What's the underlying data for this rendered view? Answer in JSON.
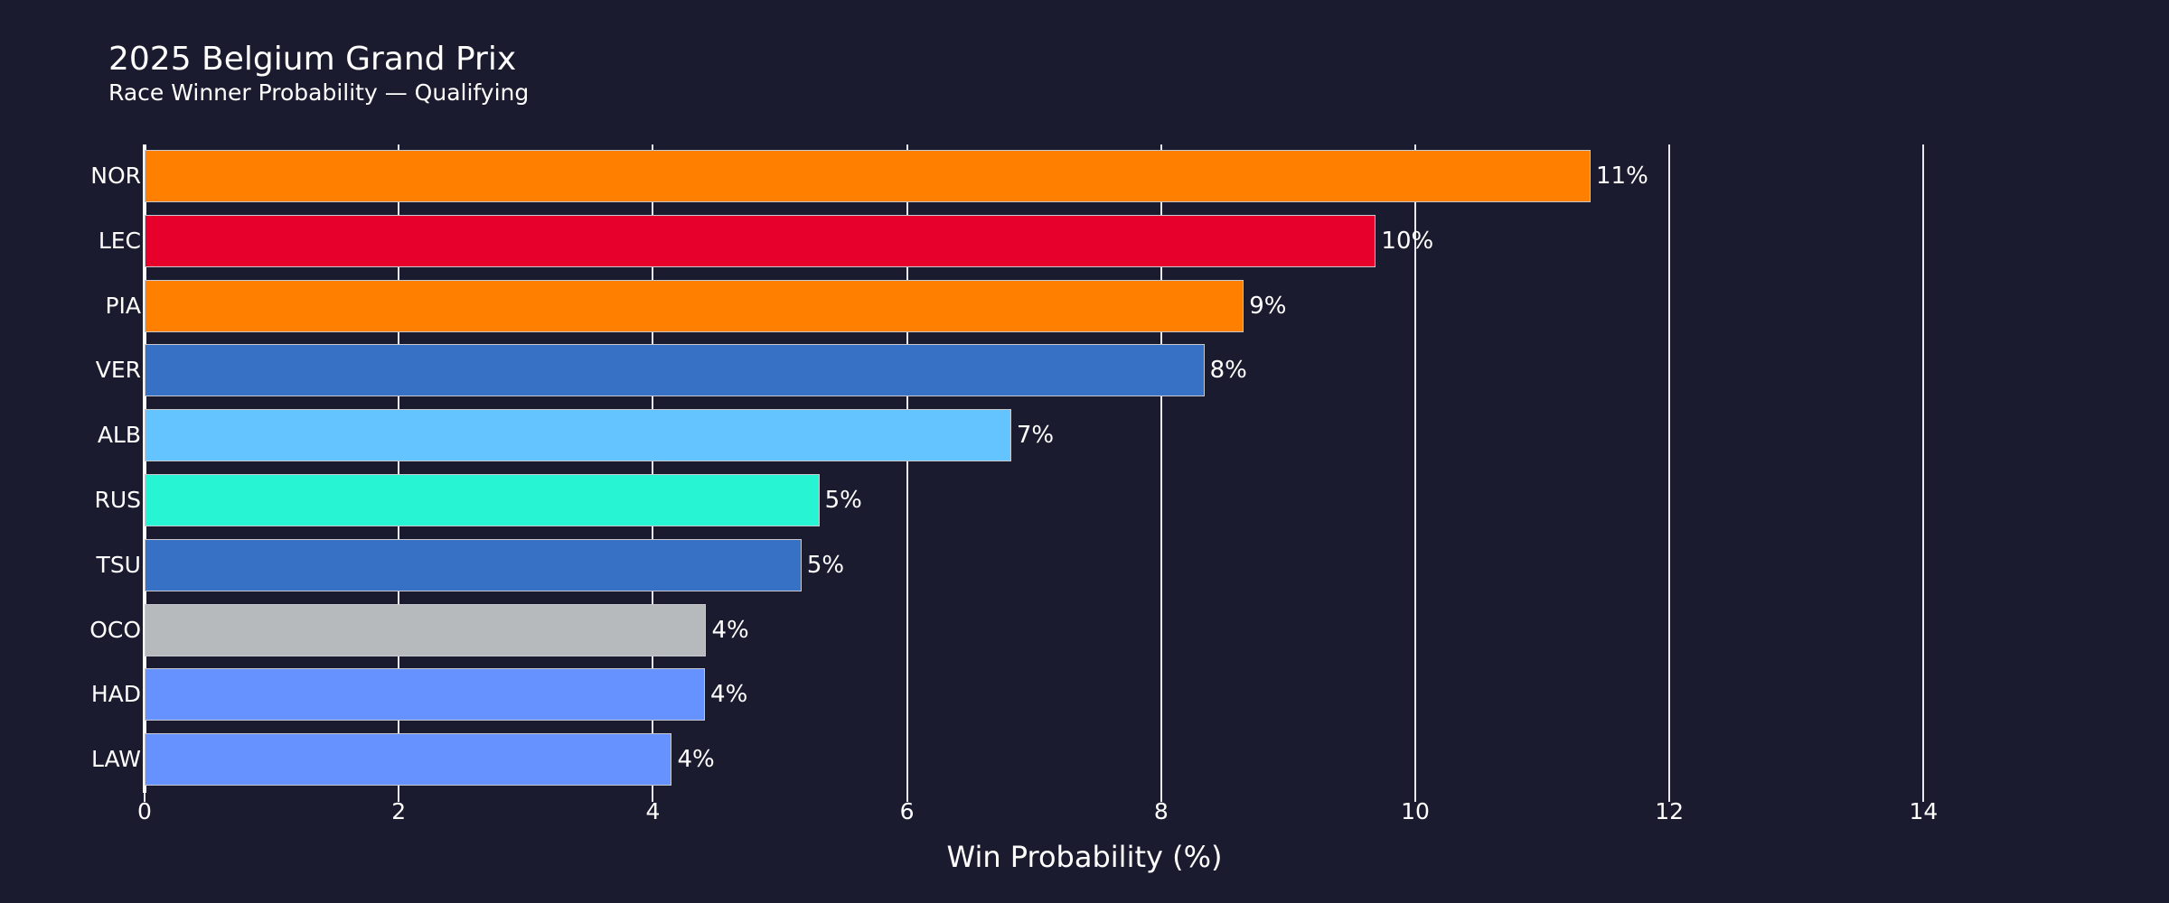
{
  "header": {
    "title": "2025 Belgium Grand Prix",
    "subtitle": "Race Winner Probability — Qualifying"
  },
  "chart_data": {
    "type": "bar",
    "orientation": "horizontal",
    "title": "2025 Belgium Grand Prix",
    "subtitle": "Race Winner Probability — Qualifying",
    "xlabel": "Win Probability (%)",
    "ylabel": "",
    "categories": [
      "NOR",
      "LEC",
      "PIA",
      "VER",
      "ALB",
      "RUS",
      "TSU",
      "OCO",
      "HAD",
      "LAW"
    ],
    "values": [
      11.38,
      9.69,
      8.65,
      8.34,
      6.82,
      5.31,
      5.17,
      4.42,
      4.41,
      4.15
    ],
    "data_labels": [
      "11%",
      "10%",
      "9%",
      "8%",
      "7%",
      "5%",
      "5%",
      "4%",
      "4%",
      "4%"
    ],
    "colors": [
      "#ff8000",
      "#e8002d",
      "#ff8000",
      "#3671c6",
      "#64c4ff",
      "#27f4d2",
      "#3671c6",
      "#b6babd",
      "#6692ff",
      "#6692ff"
    ],
    "xticks": [
      0,
      2,
      4,
      6,
      8,
      10,
      12,
      14
    ],
    "xlim": [
      0,
      15.6
    ],
    "grid": "vertical",
    "legend": "none",
    "background": "#1b1b2f"
  },
  "axis": {
    "x_title": "Win Probability (%)",
    "ticks": [
      "0",
      "2",
      "4",
      "6",
      "8",
      "10",
      "12",
      "14"
    ]
  }
}
